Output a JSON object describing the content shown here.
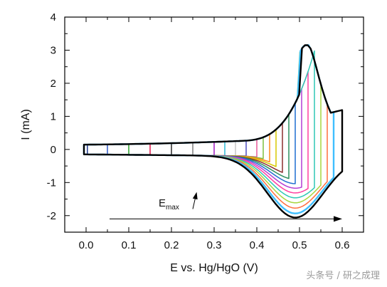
{
  "chart_data": {
    "type": "line",
    "title": "",
    "xlabel": "E vs. Hg/HgO (V)",
    "ylabel": "I (mA)",
    "xlim": [
      -0.05,
      0.65
    ],
    "ylim": [
      -2.5,
      4
    ],
    "xticks": [
      "0.0",
      "0.1",
      "0.2",
      "0.3",
      "0.4",
      "0.5",
      "0.6"
    ],
    "yticks": [
      "-2",
      "-1",
      "0",
      "1",
      "2",
      "3",
      "4"
    ],
    "grid": false,
    "legend": "none",
    "annotation": {
      "text": "E",
      "subscript": "max"
    },
    "arrow": {
      "x_start": 0.055,
      "x_end": 0.6,
      "y": -2.1
    },
    "emax_arrow": {
      "x_start": 0.25,
      "x_end": 0.258,
      "y_start": -1.8,
      "y_end": -1.35
    },
    "cycles": [
      {
        "emax": 0.0,
        "color": "#1f3a93"
      },
      {
        "emax": 0.05,
        "color": "#2e59c9"
      },
      {
        "emax": 0.1,
        "color": "#2ca02c"
      },
      {
        "emax": 0.15,
        "color": "#e0184d"
      },
      {
        "emax": 0.2,
        "color": "#2a2a2a"
      },
      {
        "emax": 0.25,
        "color": "#7e7e7e"
      },
      {
        "emax": 0.3,
        "color": "#a01cc4"
      },
      {
        "emax": 0.325,
        "color": "#2bbbd9"
      },
      {
        "emax": 0.35,
        "color": "#c7c7c7"
      },
      {
        "emax": 0.375,
        "color": "#4d4dbf"
      },
      {
        "emax": 0.4,
        "color": "#e85a9a"
      },
      {
        "emax": 0.415,
        "color": "#7fbf3f"
      },
      {
        "emax": 0.43,
        "color": "#ff8a1a"
      },
      {
        "emax": 0.445,
        "color": "#d7c800"
      },
      {
        "emax": 0.46,
        "color": "#8b2f2f"
      },
      {
        "emax": 0.475,
        "color": "#2f8f5f"
      },
      {
        "emax": 0.49,
        "color": "#1f6fd0"
      },
      {
        "emax": 0.505,
        "color": "#b43fd6"
      },
      {
        "emax": 0.52,
        "color": "#ff3fa0"
      },
      {
        "emax": 0.535,
        "color": "#2ec7b5"
      },
      {
        "emax": 0.55,
        "color": "#a7d63f"
      },
      {
        "emax": 0.565,
        "color": "#ff6f3f"
      },
      {
        "emax": 0.58,
        "color": "#3fbfff"
      },
      {
        "emax": 0.6,
        "color": "#000000"
      }
    ]
  },
  "watermark": "头条号 / 研之成理"
}
